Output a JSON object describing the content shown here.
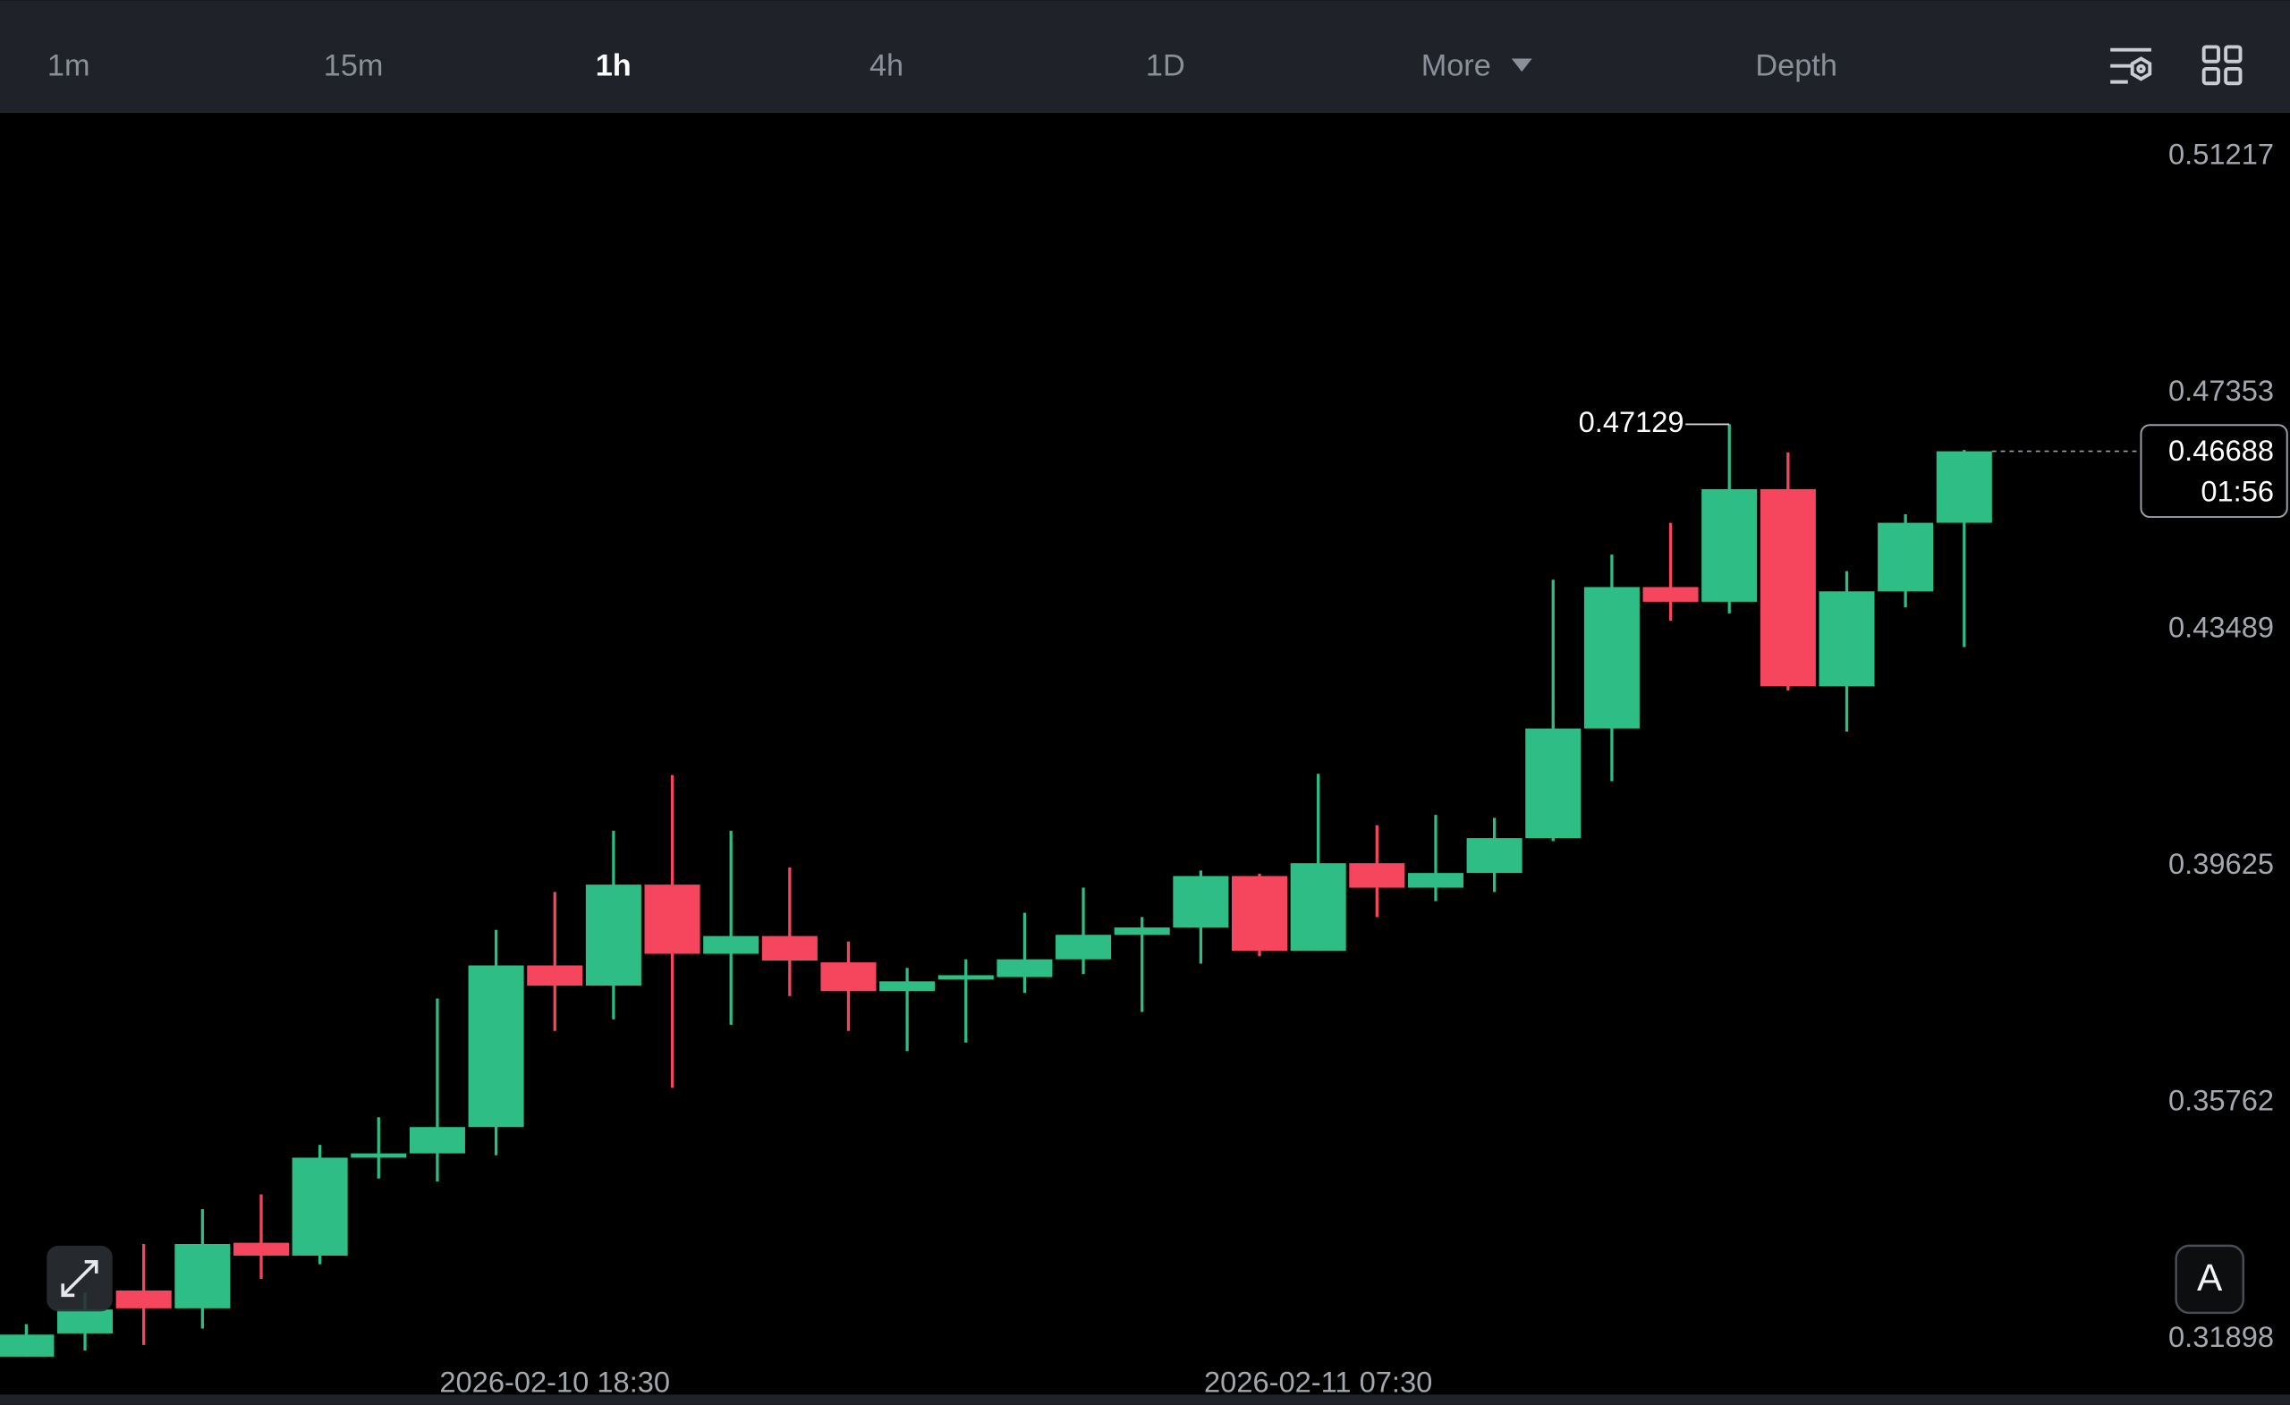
{
  "toolbar": {
    "tabs": [
      "1m",
      "15m",
      "1h",
      "4h",
      "1D",
      "More",
      "Depth"
    ],
    "active": 2
  },
  "auto_button": "A",
  "chart_data": {
    "type": "candlestick",
    "categories": [
      null,
      null,
      null,
      null,
      null,
      null,
      null,
      null,
      null,
      "2026-02-10 18:30",
      null,
      null,
      null,
      null,
      null,
      null,
      null,
      null,
      null,
      null,
      null,
      null,
      "2026-02-11 07:30",
      null,
      null,
      null,
      null,
      null,
      null,
      null,
      null,
      null,
      null,
      null
    ],
    "open": [
      0.319,
      0.3228,
      0.3298,
      0.3269,
      0.3376,
      0.3355,
      0.3515,
      0.3522,
      0.3565,
      0.3829,
      0.3796,
      0.3961,
      0.3848,
      0.3877,
      0.3834,
      0.3787,
      0.3806,
      0.381,
      0.3839,
      0.3879,
      0.3891,
      0.3975,
      0.3853,
      0.3996,
      0.3956,
      0.398,
      0.4037,
      0.4216,
      0.4447,
      0.4423,
      0.4607,
      0.4285,
      0.444,
      0.4552
    ],
    "high": [
      0.3243,
      0.3295,
      0.3374,
      0.3431,
      0.3455,
      0.3536,
      0.3581,
      0.3775,
      0.3887,
      0.3949,
      0.4049,
      0.414,
      0.4049,
      0.3989,
      0.3868,
      0.3825,
      0.3839,
      0.3915,
      0.3956,
      0.3908,
      0.3984,
      0.3979,
      0.4142,
      0.4058,
      0.4075,
      0.407,
      0.4459,
      0.45,
      0.4552,
      0.47129,
      0.4667,
      0.4473,
      0.4566,
      0.4671
    ],
    "low": [
      0.319,
      0.32,
      0.3209,
      0.3236,
      0.3317,
      0.3341,
      0.3481,
      0.3476,
      0.3519,
      0.3722,
      0.3741,
      0.3629,
      0.3732,
      0.3779,
      0.3722,
      0.3689,
      0.3703,
      0.3784,
      0.3815,
      0.3753,
      0.3832,
      0.3844,
      0.3853,
      0.3908,
      0.3934,
      0.3949,
      0.4032,
      0.413,
      0.4392,
      0.4404,
      0.4278,
      0.4211,
      0.4414,
      0.4349
    ],
    "close": [
      0.3226,
      0.3267,
      0.3269,
      0.3374,
      0.3355,
      0.3515,
      0.3522,
      0.3565,
      0.3829,
      0.3796,
      0.3961,
      0.3848,
      0.3877,
      0.3837,
      0.3787,
      0.3803,
      0.3813,
      0.3839,
      0.3879,
      0.3891,
      0.3975,
      0.3853,
      0.3996,
      0.3956,
      0.398,
      0.4037,
      0.4216,
      0.4447,
      0.4423,
      0.4607,
      0.4285,
      0.444,
      0.4552,
      0.46688
    ],
    "up_color": "#2ebd85",
    "down_color": "#f6465d",
    "ylim": [
      0.3128,
      0.5222
    ],
    "yticks": [
      0.31898,
      0.35762,
      0.39625,
      0.43489,
      0.47353,
      0.51217
    ],
    "countdown": "01:56",
    "grid": false
  }
}
